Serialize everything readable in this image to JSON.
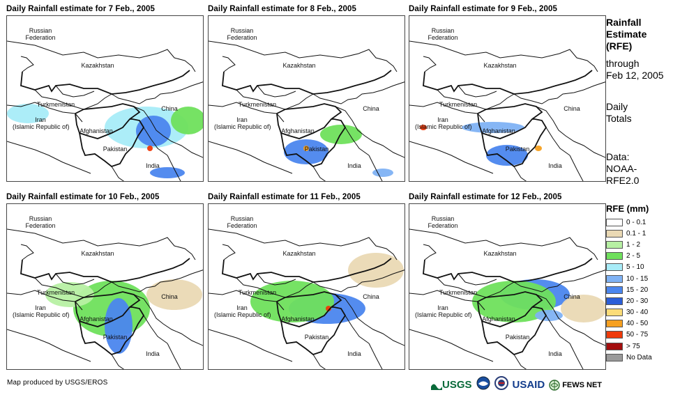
{
  "panels": [
    {
      "title": "Daily Rainfall estimate for 7 Feb., 2005"
    },
    {
      "title": "Daily Rainfall estimate for 8 Feb., 2005"
    },
    {
      "title": "Daily Rainfall estimate for 9 Feb., 2005"
    },
    {
      "title": "Daily Rainfall estimate for 10 Feb., 2005"
    },
    {
      "title": "Daily Rainfall estimate for 11 Feb., 2005"
    },
    {
      "title": "Daily Rainfall estimate for 12 Feb., 2005"
    }
  ],
  "map_labels": {
    "russia_line1": "Russian",
    "russia_line2": "Federation",
    "kazakhstan": "Kazakhstan",
    "turkmenistan": "Turkmenistan",
    "iran_line1": "Iran",
    "iran_line2": "(Islamic Republic of)",
    "afghanistan": "Afghanistan",
    "pakistan": "Pakistan",
    "china": "China",
    "india": "India"
  },
  "side": {
    "title_line1": "Rainfall",
    "title_line2": "Estimate",
    "title_line3": "(RFE)",
    "through": "through",
    "date": "Feb 12, 2005",
    "daily1": "Daily",
    "daily2": "Totals",
    "data1": "Data:",
    "data2": "NOAA-",
    "data3": "RFE2.0"
  },
  "legend": {
    "title": "RFE (mm)",
    "items": [
      {
        "label": "0 - 0.1",
        "color": "#ffffff"
      },
      {
        "label": "0.1 - 1",
        "color": "#ead9b4"
      },
      {
        "label": "1 - 2",
        "color": "#b7f0a3"
      },
      {
        "label": "2 - 5",
        "color": "#6fe05c"
      },
      {
        "label": "5 - 10",
        "color": "#a8ecf8"
      },
      {
        "label": "10 - 15",
        "color": "#7fb2f4"
      },
      {
        "label": "15 - 20",
        "color": "#4b86ee"
      },
      {
        "label": "20 - 30",
        "color": "#2b5ed8"
      },
      {
        "label": "30 - 40",
        "color": "#fbdc78"
      },
      {
        "label": "40 - 50",
        "color": "#f6a020"
      },
      {
        "label": "50 - 75",
        "color": "#ef3a0a"
      },
      {
        "label": "> 75",
        "color": "#a30e0e"
      },
      {
        "label": "No Data",
        "color": "#9a9a9a"
      }
    ]
  },
  "credit": "Map produced by USGS/EROS",
  "logos": {
    "usgs": "USGS",
    "usaid": "USAID",
    "fews": "FEWS NET"
  }
}
